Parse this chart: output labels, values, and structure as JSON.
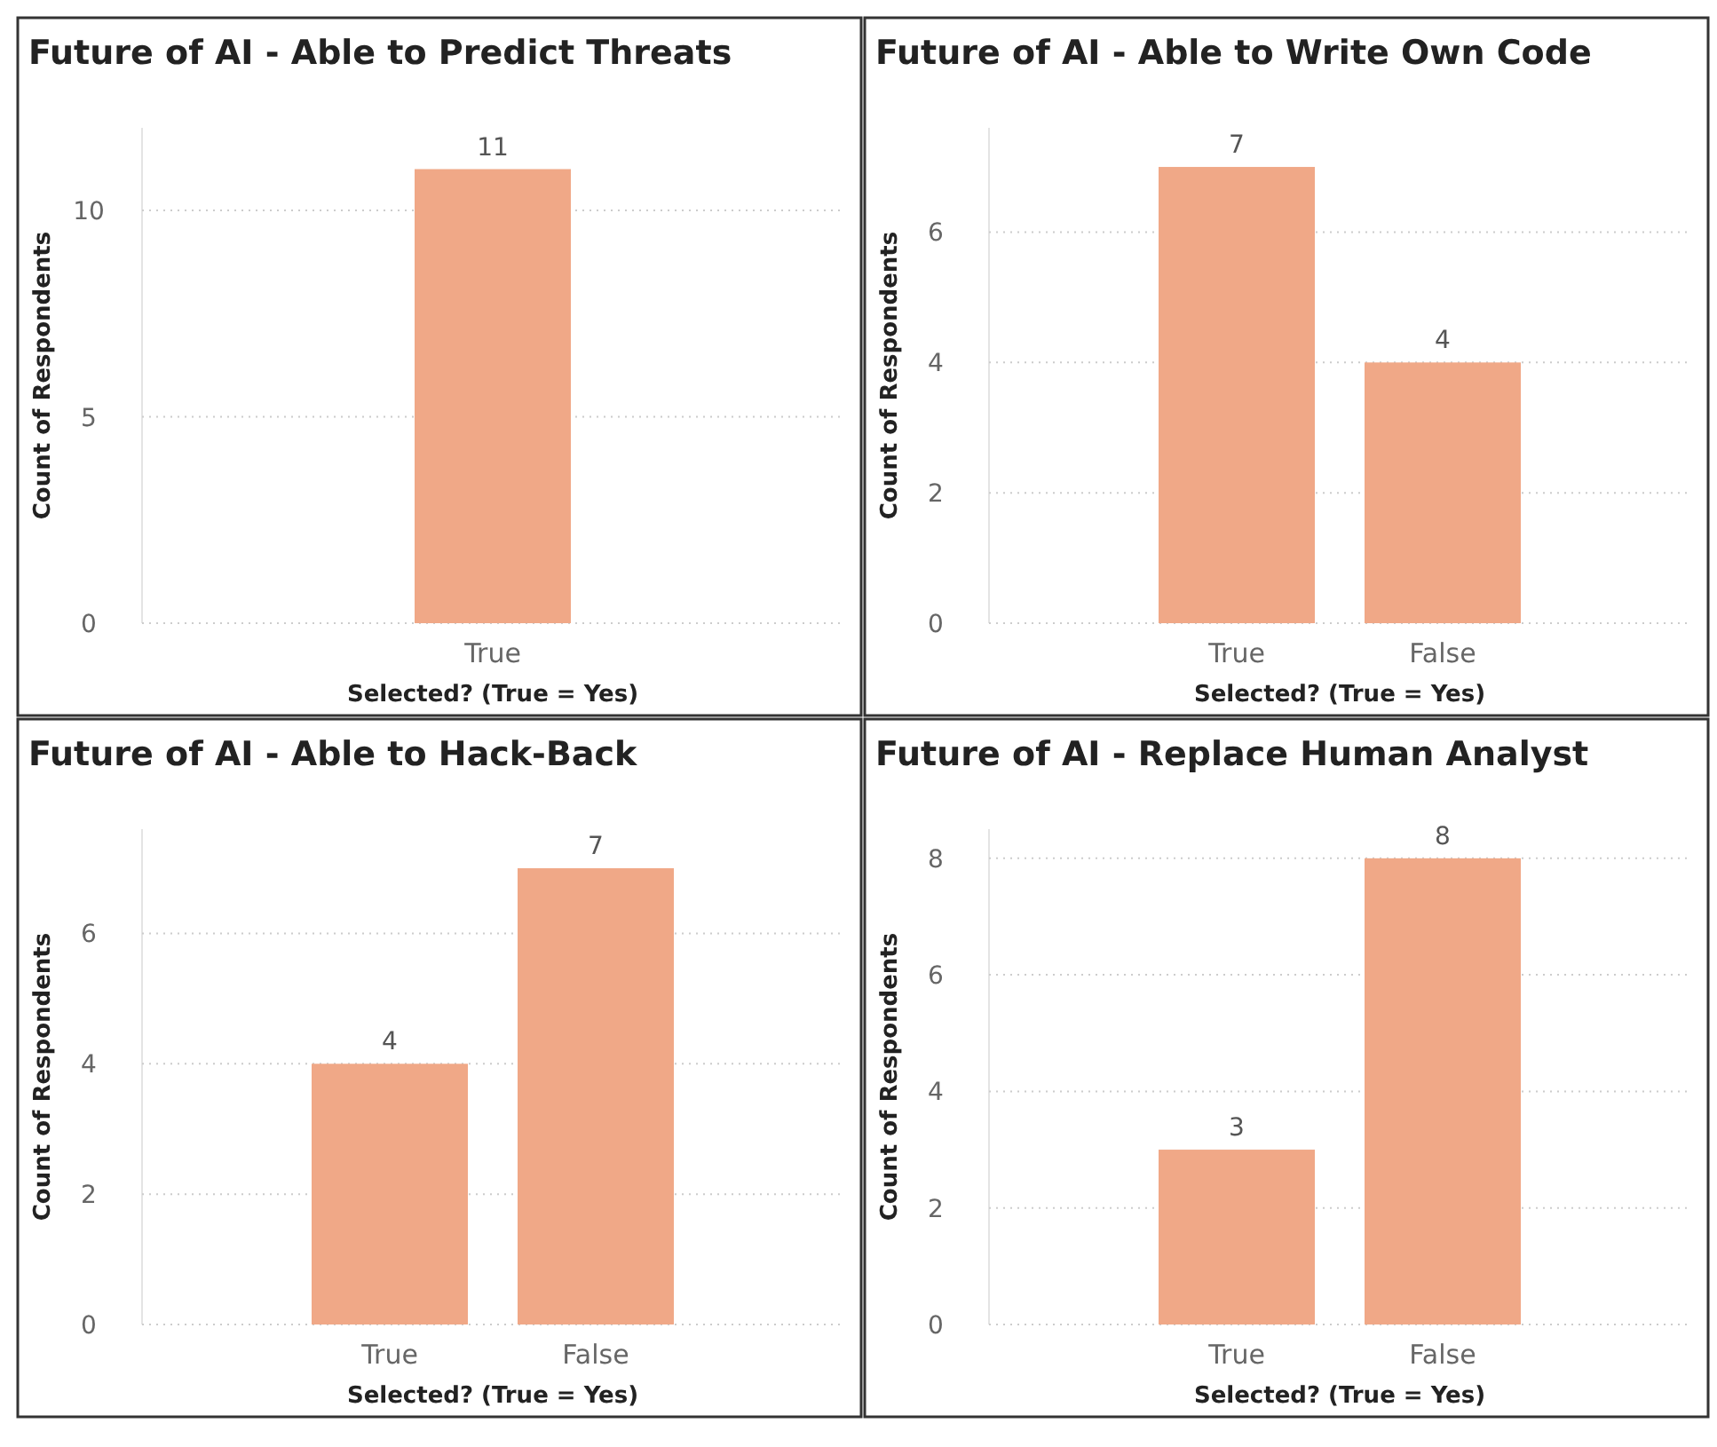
{
  "chart_data": [
    {
      "type": "bar",
      "title": "Future of AI - Able to Predict Threats",
      "xlabel": "Selected? (True = Yes)",
      "ylabel": "Count of Respondents",
      "categories": [
        "True"
      ],
      "values": [
        11
      ],
      "color": "#f0a887",
      "ylim": [
        0,
        12
      ],
      "yticks": [
        0,
        5,
        10
      ],
      "grid": "y",
      "data_labels": true
    },
    {
      "type": "bar",
      "title": "Future of AI - Able to Write Own Code",
      "xlabel": "Selected? (True = Yes)",
      "ylabel": "Count of Respondents",
      "categories": [
        "True",
        "False"
      ],
      "values": [
        7,
        4
      ],
      "color": "#f0a887",
      "ylim": [
        0,
        7.6
      ],
      "yticks": [
        0,
        2,
        4,
        6
      ],
      "grid": "y",
      "data_labels": true
    },
    {
      "type": "bar",
      "title": "Future of AI - Able to Hack-Back",
      "xlabel": "Selected? (True = Yes)",
      "ylabel": "Count of Respondents",
      "categories": [
        "True",
        "False"
      ],
      "values": [
        4,
        7
      ],
      "color": "#f0a887",
      "ylim": [
        0,
        7.6
      ],
      "yticks": [
        0,
        2,
        4,
        6
      ],
      "grid": "y",
      "data_labels": true
    },
    {
      "type": "bar",
      "title": "Future of AI - Replace Human Analyst",
      "xlabel": "Selected? (True = Yes)",
      "ylabel": "Count of Respondents",
      "categories": [
        "True",
        "False"
      ],
      "values": [
        3,
        8
      ],
      "color": "#f0a887",
      "ylim": [
        0,
        8.5
      ],
      "yticks": [
        0,
        2,
        4,
        6,
        8
      ],
      "grid": "y",
      "data_labels": true
    }
  ]
}
